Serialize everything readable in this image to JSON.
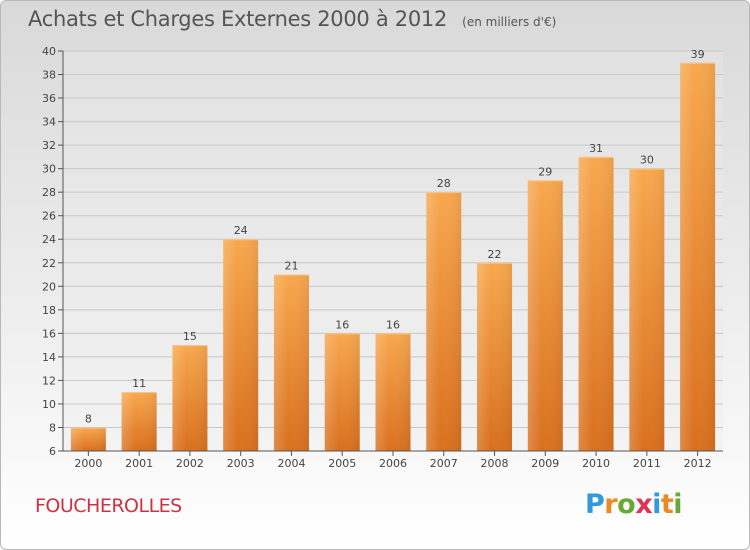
{
  "title": "Achats et Charges Externes 2000 à 2012",
  "subtitle": "(en milliers d'€)",
  "city": "FOUCHEROLLES",
  "logo": {
    "letters": [
      "P",
      "r",
      "o",
      "x",
      "i",
      "t",
      "i"
    ],
    "colors": [
      "#3399dd",
      "#ee8822",
      "#66aa33",
      "#dd3355",
      "#3399dd",
      "#ee8822",
      "#66aa33"
    ]
  },
  "colors": {
    "bar_top": "#f8a84e",
    "bar_bottom": "#d9701e",
    "grid": "#c8c8c8",
    "axis": "#555555"
  },
  "chart_data": {
    "type": "bar",
    "title": "Achats et Charges Externes 2000 à 2012",
    "subtitle": "(en milliers d'€)",
    "xlabel": "",
    "ylabel": "",
    "categories": [
      "2000",
      "2001",
      "2002",
      "2003",
      "2004",
      "2005",
      "2006",
      "2007",
      "2008",
      "2009",
      "2010",
      "2011",
      "2012"
    ],
    "values": [
      8,
      11,
      15,
      24,
      21,
      16,
      16,
      28,
      22,
      29,
      31,
      30,
      39
    ],
    "ylim": [
      6,
      40
    ],
    "yticks": [
      6,
      8,
      10,
      12,
      14,
      16,
      18,
      20,
      22,
      24,
      26,
      28,
      30,
      32,
      34,
      36,
      38,
      40
    ],
    "grid": true,
    "data_labels": true,
    "legend": "none"
  }
}
